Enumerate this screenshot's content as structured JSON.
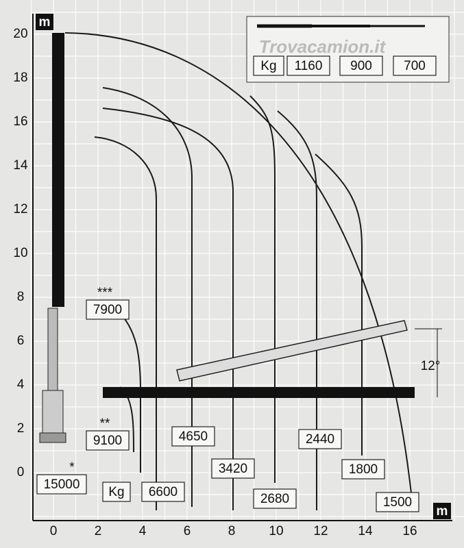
{
  "axes": {
    "y_unit": "m",
    "x_unit": "m",
    "yticks": [
      "0",
      "2",
      "4",
      "6",
      "8",
      "10",
      "12",
      "14",
      "16",
      "18",
      "20"
    ],
    "xticks": [
      "0",
      "2",
      "4",
      "6",
      "8",
      "10",
      "12",
      "14",
      "16"
    ]
  },
  "legend": {
    "unit": "Kg",
    "loads": [
      "1160",
      "900",
      "700"
    ]
  },
  "watermark": "Trovacamion.it",
  "boom_loads": [
    {
      "stars": "***",
      "value": "7900"
    },
    {
      "stars": "**",
      "value": "9100"
    },
    {
      "stars": "*",
      "value": "15000"
    }
  ],
  "unit_label": "Kg",
  "curve_loads": [
    "6600",
    "4650",
    "3420",
    "2680",
    "2440",
    "1800",
    "1500"
  ],
  "angle": "12°"
}
